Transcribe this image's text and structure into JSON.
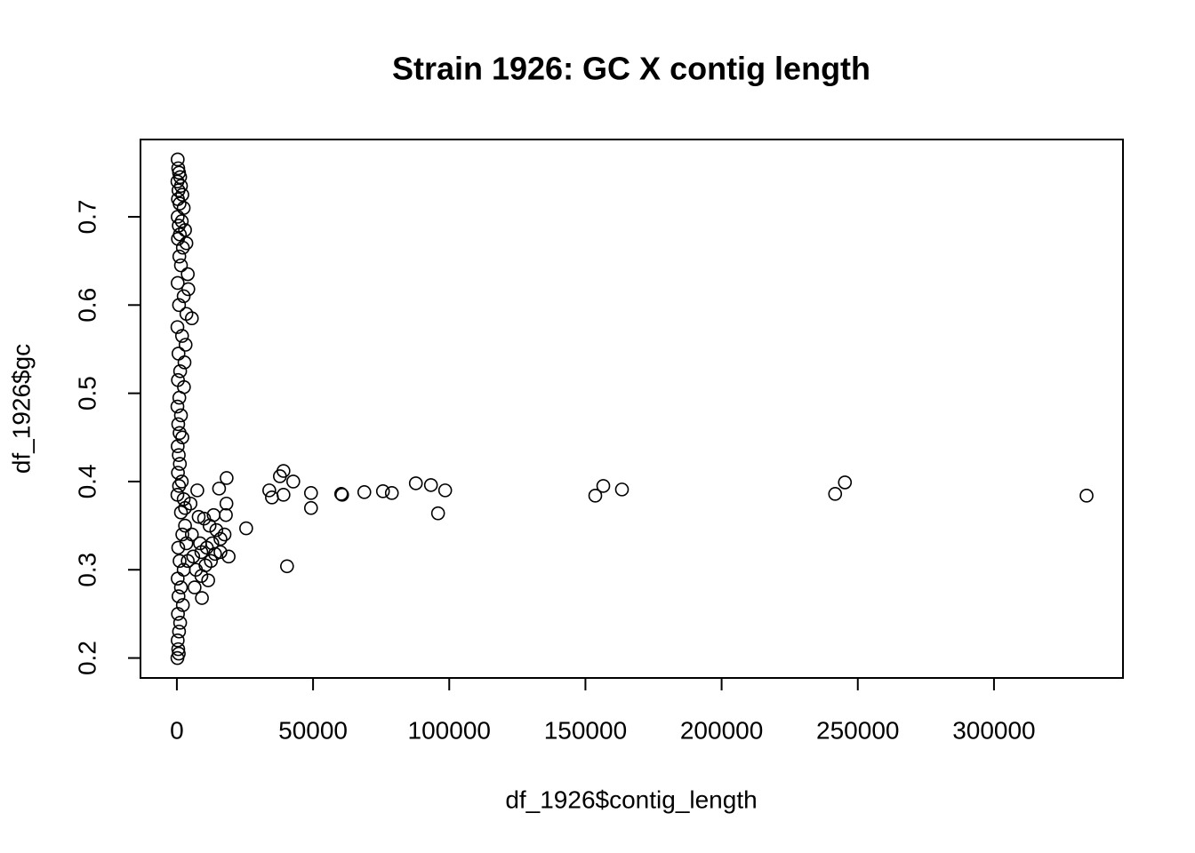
{
  "chart_data": {
    "type": "scatter",
    "title": "Strain 1926: GC X contig length",
    "x_label": "df_1926$contig_length",
    "y_label": "df_1926$gc",
    "xlim": [
      -13360,
      347360
    ],
    "ylim": [
      0.1774,
      0.7876
    ],
    "xticks": [
      0,
      50000,
      100000,
      150000,
      200000,
      250000,
      300000
    ],
    "yticks": [
      0.2,
      0.3,
      0.4,
      0.5,
      0.6,
      0.7
    ],
    "color": "#000000",
    "x": [
      18265,
      25440,
      33920,
      34900,
      37830,
      39140,
      39140,
      42730,
      40440,
      49250,
      49250,
      60340,
      60670,
      68820,
      75670,
      78930,
      87740,
      93280,
      95890,
      98500,
      153620,
      156560,
      163410,
      241680,
      245270,
      333990,
      300,
      500,
      800,
      1200,
      200,
      1500,
      600,
      2000,
      400,
      1000,
      2500,
      300,
      1800,
      700,
      3000,
      1100,
      400,
      3500,
      2200,
      900,
      4000,
      1500,
      300,
      4200,
      2500,
      800,
      5500,
      3500,
      200,
      1900,
      3200,
      600,
      2800,
      1200,
      400,
      2600,
      900,
      200,
      1500,
      500,
      1000,
      2000,
      300,
      700,
      1100,
      400,
      1800,
      800,
      200,
      2500,
      7500,
      3000,
      5000,
      1500,
      8000,
      10000,
      13500,
      18000,
      18200,
      15500,
      12000,
      14500,
      17500,
      16000,
      13000,
      11000,
      9000,
      6000,
      19000,
      14000,
      4000,
      10500,
      7000,
      9000,
      11500,
      6500,
      9200,
      2000,
      3500,
      500,
      1000,
      2500,
      300,
      1500,
      600,
      2200,
      400,
      1200,
      800,
      300,
      500,
      200,
      700,
      3000,
      5500,
      8500,
      12500,
      16000
    ],
    "y": [
      0.404,
      0.347,
      0.39,
      0.382,
      0.406,
      0.412,
      0.385,
      0.4,
      0.304,
      0.387,
      0.37,
      0.386,
      0.385,
      0.388,
      0.389,
      0.387,
      0.398,
      0.396,
      0.364,
      0.39,
      0.384,
      0.395,
      0.391,
      0.386,
      0.399,
      0.384,
      0.765,
      0.755,
      0.75,
      0.745,
      0.74,
      0.735,
      0.73,
      0.725,
      0.72,
      0.715,
      0.71,
      0.7,
      0.695,
      0.69,
      0.685,
      0.68,
      0.675,
      0.67,
      0.665,
      0.655,
      0.635,
      0.645,
      0.625,
      0.618,
      0.61,
      0.6,
      0.585,
      0.59,
      0.575,
      0.565,
      0.555,
      0.545,
      0.535,
      0.525,
      0.515,
      0.507,
      0.495,
      0.485,
      0.475,
      0.465,
      0.455,
      0.45,
      0.44,
      0.43,
      0.42,
      0.41,
      0.4,
      0.395,
      0.385,
      0.38,
      0.39,
      0.37,
      0.375,
      0.365,
      0.36,
      0.358,
      0.362,
      0.362,
      0.375,
      0.392,
      0.35,
      0.345,
      0.34,
      0.335,
      0.33,
      0.325,
      0.32,
      0.315,
      0.315,
      0.318,
      0.31,
      0.305,
      0.3,
      0.293,
      0.288,
      0.28,
      0.268,
      0.34,
      0.33,
      0.325,
      0.31,
      0.3,
      0.29,
      0.28,
      0.27,
      0.26,
      0.25,
      0.24,
      0.23,
      0.22,
      0.21,
      0.2,
      0.205,
      0.35,
      0.34,
      0.33,
      0.31,
      0.32
    ]
  }
}
